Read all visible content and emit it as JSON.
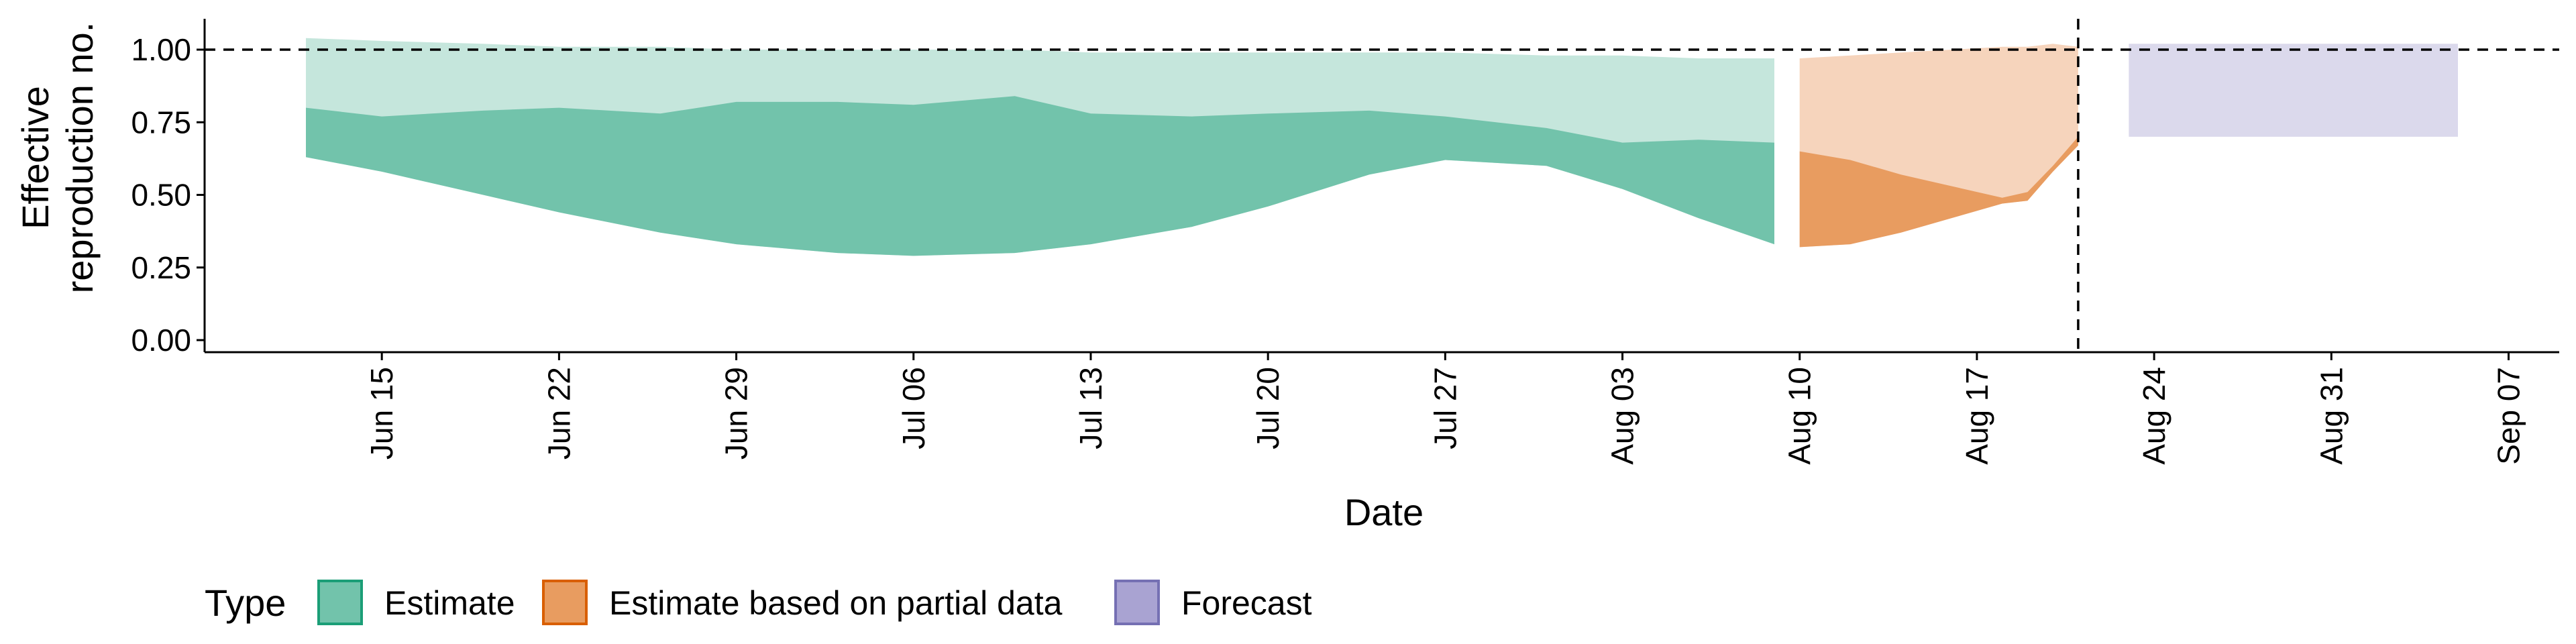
{
  "chart_data": {
    "type": "area",
    "xlabel": "Date",
    "ylabel_lines": [
      "Effective",
      "reproduction no."
    ],
    "ylim": [
      0,
      1.05
    ],
    "xlim": [
      "2020-06-08",
      "2020-09-09"
    ],
    "y_ticks": [
      0.0,
      0.25,
      0.5,
      0.75,
      1.0
    ],
    "y_tick_labels": [
      "0.00",
      "0.25",
      "0.50",
      "0.75",
      "1.00"
    ],
    "x_ticks": [
      {
        "date": "2020-06-15",
        "label": "Jun 15"
      },
      {
        "date": "2020-06-22",
        "label": "Jun 22"
      },
      {
        "date": "2020-06-29",
        "label": "Jun 29"
      },
      {
        "date": "2020-07-06",
        "label": "Jul 06"
      },
      {
        "date": "2020-07-13",
        "label": "Jul 13"
      },
      {
        "date": "2020-07-20",
        "label": "Jul 20"
      },
      {
        "date": "2020-07-27",
        "label": "Jul 27"
      },
      {
        "date": "2020-08-03",
        "label": "Aug 03"
      },
      {
        "date": "2020-08-10",
        "label": "Aug 10"
      },
      {
        "date": "2020-08-17",
        "label": "Aug 17"
      },
      {
        "date": "2020-08-24",
        "label": "Aug 24"
      },
      {
        "date": "2020-08-31",
        "label": "Aug 31"
      },
      {
        "date": "2020-09-07",
        "label": "Sep 07"
      }
    ],
    "reference_line_y": 1.0,
    "reference_line_x": "2020-08-21",
    "legend": {
      "title": "Type",
      "position": "bottom-left",
      "entries": [
        "Estimate",
        "Estimate based on partial data",
        "Forecast"
      ]
    },
    "series": [
      {
        "name": "Estimate",
        "fill": "#66c2a5",
        "outer_fill": "#c5e6dc",
        "inner_fill": "#72c3ab",
        "x": [
          "2020-06-12",
          "2020-06-15",
          "2020-06-19",
          "2020-06-22",
          "2020-06-26",
          "2020-06-29",
          "2020-07-03",
          "2020-07-06",
          "2020-07-10",
          "2020-07-13",
          "2020-07-17",
          "2020-07-20",
          "2020-07-24",
          "2020-07-27",
          "2020-07-31",
          "2020-08-03",
          "2020-08-06",
          "2020-08-09"
        ],
        "outer_low": [
          0.63,
          0.58,
          0.5,
          0.44,
          0.37,
          0.33,
          0.3,
          0.29,
          0.3,
          0.33,
          0.39,
          0.46,
          0.57,
          0.62,
          0.6,
          0.52,
          0.42,
          0.33
        ],
        "outer_high": [
          1.04,
          1.03,
          1.02,
          1.01,
          1.01,
          1.0,
          1.0,
          1.0,
          1.0,
          0.99,
          0.99,
          0.99,
          0.99,
          0.99,
          0.98,
          0.98,
          0.97,
          0.97
        ],
        "inner_low": [
          0.63,
          0.58,
          0.5,
          0.44,
          0.37,
          0.33,
          0.3,
          0.29,
          0.3,
          0.33,
          0.39,
          0.46,
          0.57,
          0.62,
          0.6,
          0.52,
          0.42,
          0.33
        ],
        "inner_high": [
          0.8,
          0.77,
          0.79,
          0.8,
          0.78,
          0.82,
          0.82,
          0.81,
          0.84,
          0.78,
          0.77,
          0.78,
          0.79,
          0.77,
          0.73,
          0.68,
          0.69,
          0.68
        ]
      },
      {
        "name": "Estimate based on partial data",
        "fill": "#fc8d62",
        "outer_fill": "#f6d4bc",
        "inner_fill": "#e89c60",
        "x": [
          "2020-08-10",
          "2020-08-12",
          "2020-08-14",
          "2020-08-16",
          "2020-08-18",
          "2020-08-19",
          "2020-08-20",
          "2020-08-21"
        ],
        "outer_low": [
          0.32,
          0.33,
          0.37,
          0.42,
          0.47,
          0.48,
          0.58,
          0.67
        ],
        "outer_high": [
          0.97,
          0.98,
          0.99,
          1.0,
          1.01,
          1.01,
          1.02,
          1.01
        ],
        "inner_low": [
          0.32,
          0.33,
          0.37,
          0.42,
          0.47,
          0.48,
          0.58,
          0.67
        ],
        "inner_high": [
          0.65,
          0.62,
          0.57,
          0.53,
          0.49,
          0.51,
          0.6,
          0.7
        ]
      },
      {
        "name": "Forecast",
        "fill": "#8da0cb",
        "outer_fill": "#dbd9ec",
        "x": [
          "2020-08-23",
          "2020-09-05"
        ],
        "outer_low": [
          0.7,
          0.7
        ],
        "outer_high": [
          1.02,
          1.02
        ]
      }
    ],
    "legend_key_colors": {
      "Estimate": {
        "fill": "#72c3ab",
        "stroke": "#1b9e77"
      },
      "Estimate based on partial data": {
        "fill": "#e89c60",
        "stroke": "#d95f02"
      },
      "Forecast": {
        "fill": "#a9a3d2",
        "stroke": "#7570b3"
      }
    }
  }
}
